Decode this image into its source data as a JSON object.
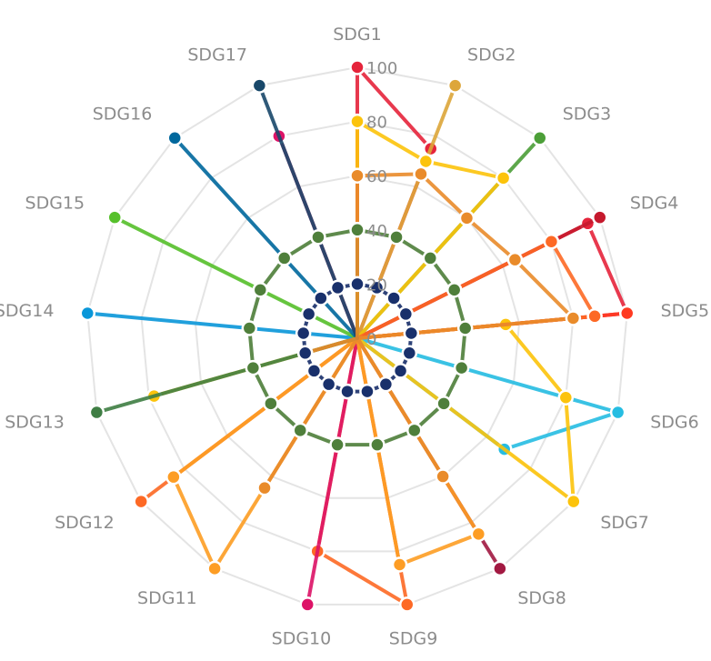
{
  "chart_data": {
    "type": "radar",
    "axes": [
      "SDG1",
      "SDG2",
      "SDG3",
      "SDG4",
      "SDG5",
      "SDG6",
      "SDG7",
      "SDG8",
      "SDG9",
      "SDG10",
      "SDG11",
      "SDG12",
      "SDG13",
      "SDG14",
      "SDG15",
      "SDG16",
      "SDG17"
    ],
    "ticks": [
      "0",
      "20",
      "40",
      "60",
      "80",
      "100"
    ],
    "range": [
      0,
      100
    ],
    "grid": true,
    "series": [
      {
        "color": "#e5243b",
        "values": [
          100,
          75,
          0,
          95,
          100,
          0,
          0,
          0,
          0,
          0,
          0,
          0,
          0,
          0,
          0,
          0,
          0
        ]
      },
      {
        "color": "#dda63a",
        "values": [
          0,
          100,
          0,
          0,
          0,
          0,
          0,
          0,
          0,
          0,
          0,
          0,
          0,
          0,
          0,
          0,
          0
        ]
      },
      {
        "color": "#4c9f38",
        "values": [
          0,
          0,
          100,
          0,
          0,
          0,
          0,
          0,
          0,
          0,
          0,
          0,
          0,
          0,
          0,
          0,
          0
        ]
      },
      {
        "color": "#c5192d",
        "values": [
          0,
          0,
          0,
          100,
          0,
          0,
          0,
          0,
          0,
          0,
          0,
          0,
          0,
          0,
          0,
          0,
          0
        ]
      },
      {
        "color": "#ff3a21",
        "values": [
          0,
          0,
          0,
          0,
          100,
          0,
          0,
          0,
          0,
          0,
          0,
          0,
          0,
          0,
          0,
          0,
          0
        ]
      },
      {
        "color": "#26bde2",
        "values": [
          0,
          0,
          0,
          0,
          0,
          100,
          68,
          0,
          0,
          0,
          0,
          0,
          0,
          0,
          0,
          0,
          0
        ]
      },
      {
        "color": "#fcc30b",
        "values": [
          80,
          70,
          80,
          0,
          55,
          80,
          100,
          0,
          0,
          0,
          0,
          0,
          78,
          0,
          0,
          0,
          0
        ]
      },
      {
        "color": "#a21942",
        "values": [
          0,
          0,
          0,
          0,
          0,
          0,
          0,
          100,
          0,
          0,
          0,
          0,
          0,
          0,
          0,
          0,
          0
        ]
      },
      {
        "color": "#fd6925",
        "values": [
          60,
          0,
          0,
          80,
          88,
          0,
          0,
          0,
          100,
          80,
          0,
          100,
          0,
          0,
          0,
          0,
          0
        ]
      },
      {
        "color": "#dd1367",
        "values": [
          0,
          0,
          0,
          0,
          0,
          0,
          0,
          0,
          0,
          100,
          0,
          0,
          0,
          0,
          0,
          0,
          80
        ]
      },
      {
        "color": "#fd9d24",
        "values": [
          0,
          0,
          0,
          0,
          0,
          0,
          0,
          85,
          85,
          0,
          100,
          85,
          0,
          0,
          0,
          0,
          0
        ]
      },
      {
        "color": "#bf8b2e",
        "values": [
          0,
          0,
          0,
          0,
          0,
          0,
          0,
          0,
          0,
          0,
          0,
          0,
          0,
          0,
          0,
          0,
          0
        ]
      },
      {
        "color": "#3f7e44",
        "values": [
          40,
          0,
          0,
          0,
          0,
          0,
          0,
          0,
          0,
          0,
          0,
          0,
          100,
          0,
          0,
          0,
          0
        ]
      },
      {
        "color": "#0a97d9",
        "values": [
          0,
          0,
          0,
          0,
          0,
          0,
          0,
          0,
          0,
          0,
          0,
          0,
          0,
          100,
          0,
          0,
          0
        ]
      },
      {
        "color": "#56c02b",
        "values": [
          20,
          0,
          0,
          0,
          0,
          0,
          0,
          0,
          0,
          0,
          0,
          0,
          0,
          0,
          100,
          0,
          0
        ]
      },
      {
        "color": "#00689d",
        "values": [
          0,
          0,
          0,
          0,
          0,
          0,
          0,
          0,
          0,
          0,
          0,
          0,
          0,
          0,
          0,
          100,
          0
        ]
      },
      {
        "color": "#19486a",
        "values": [
          0,
          0,
          0,
          0,
          0,
          0,
          0,
          0,
          0,
          0,
          0,
          0,
          0,
          0,
          0,
          0,
          100
        ]
      },
      {
        "color": "#e98b2a",
        "values": [
          60,
          65,
          60,
          65,
          80,
          0,
          0,
          60,
          0,
          0,
          65,
          0,
          20,
          0,
          0,
          0,
          0
        ]
      },
      {
        "color": "#4f7f3b",
        "values": [
          40,
          40,
          40,
          40,
          40,
          40,
          40,
          40,
          40,
          40,
          40,
          40,
          40,
          40,
          40,
          40,
          40
        ]
      },
      {
        "color": "#19306b",
        "values": [
          20,
          20,
          20,
          20,
          20,
          20,
          20,
          20,
          20,
          20,
          20,
          20,
          20,
          20,
          20,
          20,
          20
        ]
      }
    ]
  }
}
